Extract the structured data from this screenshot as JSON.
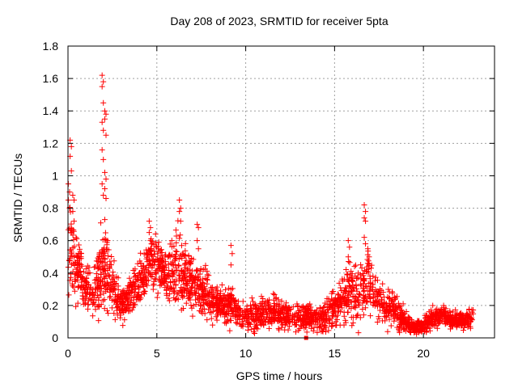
{
  "chart_data": {
    "type": "scatter",
    "title": "Day 208 of 2023, SRMTID for receiver 5pta",
    "xlabel": "GPS time / hours",
    "ylabel": "SRMTID / TECUs",
    "xlim": [
      0,
      24
    ],
    "ylim": [
      0,
      1.8
    ],
    "xticks": [
      0,
      5,
      10,
      15,
      20
    ],
    "xtick_labels": [
      "0",
      "5",
      "10",
      "15",
      "20"
    ],
    "yticks": [
      0,
      0.2,
      0.4,
      0.6,
      0.8,
      1,
      1.2,
      1.4,
      1.6,
      1.8
    ],
    "ytick_labels": [
      "0",
      "0.2",
      "0.4",
      "0.6",
      "0.8",
      "1",
      "1.2",
      "1.4",
      "1.6",
      "1.8"
    ],
    "grid": true,
    "marker": "plus",
    "color": "#ff0000",
    "profile": {
      "x": [
        0,
        0.1,
        0.2,
        0.4,
        0.6,
        0.9,
        1.2,
        1.5,
        1.8,
        2.1,
        2.4,
        2.7,
        3.0,
        3.3,
        3.6,
        4.0,
        4.4,
        4.7,
        5.0,
        5.3,
        5.6,
        6.0,
        6.4,
        6.8,
        7.2,
        7.6,
        8.0,
        8.5,
        9.0,
        9.3,
        9.6,
        10.0,
        10.5,
        11.0,
        11.5,
        12.0,
        12.5,
        13.0,
        13.5,
        14.0,
        14.5,
        15.0,
        15.4,
        15.8,
        16.2,
        16.6,
        16.9,
        17.3,
        17.8,
        18.3,
        18.8,
        19.2,
        19.6,
        20.0,
        20.5,
        21.0,
        21.5,
        22.0,
        22.5,
        22.8
      ],
      "median": [
        0.6,
        0.58,
        0.5,
        0.45,
        0.4,
        0.3,
        0.28,
        0.28,
        0.4,
        0.42,
        0.35,
        0.25,
        0.2,
        0.22,
        0.3,
        0.35,
        0.4,
        0.5,
        0.45,
        0.4,
        0.38,
        0.42,
        0.4,
        0.35,
        0.3,
        0.3,
        0.25,
        0.22,
        0.2,
        0.2,
        0.15,
        0.13,
        0.14,
        0.15,
        0.15,
        0.15,
        0.13,
        0.12,
        0.13,
        0.12,
        0.13,
        0.18,
        0.25,
        0.3,
        0.25,
        0.3,
        0.35,
        0.25,
        0.2,
        0.18,
        0.12,
        0.08,
        0.06,
        0.08,
        0.12,
        0.13,
        0.12,
        0.1,
        0.12,
        0.13
      ],
      "spread": [
        0.25,
        0.3,
        0.2,
        0.18,
        0.15,
        0.12,
        0.12,
        0.12,
        0.2,
        0.2,
        0.15,
        0.1,
        0.08,
        0.1,
        0.1,
        0.12,
        0.12,
        0.15,
        0.15,
        0.15,
        0.15,
        0.18,
        0.18,
        0.15,
        0.12,
        0.12,
        0.1,
        0.08,
        0.1,
        0.1,
        0.07,
        0.06,
        0.07,
        0.08,
        0.08,
        0.07,
        0.07,
        0.06,
        0.06,
        0.06,
        0.08,
        0.1,
        0.12,
        0.15,
        0.15,
        0.15,
        0.15,
        0.12,
        0.1,
        0.1,
        0.07,
        0.04,
        0.03,
        0.04,
        0.05,
        0.05,
        0.05,
        0.04,
        0.05,
        0.05
      ]
    },
    "spikes": [
      {
        "x": 0.05,
        "y": [
          0.95,
          0.9,
          0.85,
          0.8
        ]
      },
      {
        "x": 0.15,
        "y": [
          1.22,
          1.18,
          1.12,
          1.03
        ]
      },
      {
        "x": 0.3,
        "y": [
          0.88,
          0.85,
          0.78,
          0.72
        ]
      },
      {
        "x": 1.95,
        "y": [
          1.62,
          1.58,
          1.55,
          1.45,
          1.33,
          1.28,
          1.16,
          1.1,
          0.95,
          0.88
        ]
      },
      {
        "x": 2.1,
        "y": [
          1.4,
          1.38,
          1.35,
          1.25,
          1.02,
          0.98,
          0.92,
          0.86,
          0.73
        ]
      },
      {
        "x": 4.6,
        "y": [
          0.72,
          0.68,
          0.65,
          0.6
        ]
      },
      {
        "x": 6.3,
        "y": [
          0.85,
          0.8,
          0.78,
          0.72
        ]
      },
      {
        "x": 7.3,
        "y": [
          0.7,
          0.68,
          0.6,
          0.55
        ]
      },
      {
        "x": 9.2,
        "y": [
          0.57,
          0.52,
          0.45
        ]
      },
      {
        "x": 16.7,
        "y": [
          0.82,
          0.78,
          0.74,
          0.72,
          0.62,
          0.58
        ]
      },
      {
        "x": 16.9,
        "y": [
          0.55,
          0.5,
          0.46
        ]
      },
      {
        "x": 15.8,
        "y": [
          0.6,
          0.56,
          0.5
        ]
      }
    ],
    "outliers": [
      {
        "x": 13.4,
        "y": 0.0
      }
    ]
  }
}
